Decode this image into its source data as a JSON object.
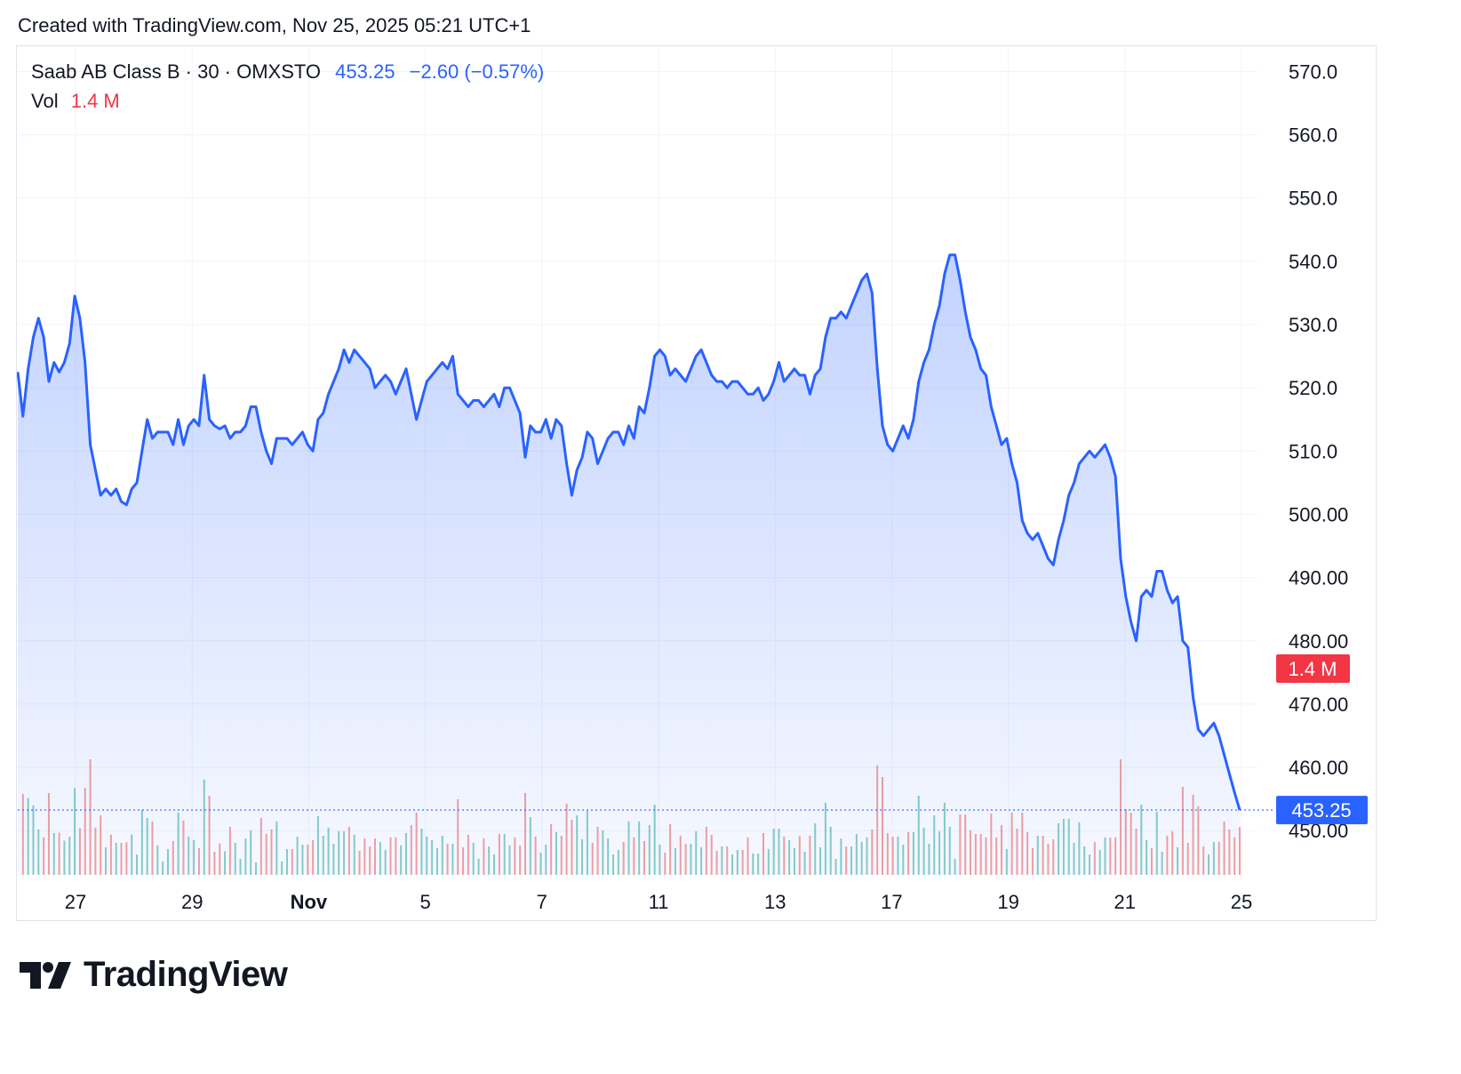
{
  "header": {
    "text": "Created with TradingView.com, Nov 25, 2025 05:21 UTC+1"
  },
  "legend": {
    "symbol": "Saab AB Class B · 30 · OMXSTO",
    "price": "453.25",
    "change": "−2.60 (−0.57%)",
    "volume_label": "Vol",
    "volume_value": "1.4 M"
  },
  "badges": {
    "price": "453.25",
    "volume": "1.4 M"
  },
  "logo": {
    "text": "TradingView"
  },
  "colors": {
    "line": "#2962ff",
    "fill": "#2962ff",
    "vol_up": "#26a69a",
    "vol_down": "#ef5350",
    "badge_vol": "#f23645",
    "badge_price": "#2962ff"
  },
  "chart_data": {
    "type": "area",
    "title": "Saab AB Class B · 30 · OMXSTO",
    "ylim": [
      443,
      574
    ],
    "y_ticks": [
      "570.0",
      "560.0",
      "550.0",
      "540.0",
      "530.0",
      "520.0",
      "510.0",
      "500.00",
      "490.00",
      "480.00",
      "470.00",
      "460.00",
      "450.00"
    ],
    "x_ticks": [
      "27",
      "29",
      "Nov",
      "5",
      "7",
      "11",
      "13",
      "17",
      "19",
      "21",
      "25"
    ],
    "grid": true,
    "last_price": 453.25,
    "x": [
      "Oct 24",
      "Oct 27",
      "Oct 28",
      "Oct 29",
      "Oct 30",
      "Oct 31",
      "Nov 3",
      "Nov 4",
      "Nov 5",
      "Nov 6",
      "Nov 7",
      "Nov 10",
      "Nov 11",
      "Nov 12",
      "Nov 13",
      "Nov 14",
      "Nov 17",
      "Nov 18",
      "Nov 19",
      "Nov 20",
      "Nov 21",
      "Nov 24",
      "Nov 25"
    ],
    "series": [
      {
        "values": [
          [
            522.5,
            515.5,
            523,
            528,
            531,
            528,
            521,
            524,
            522.5,
            524,
            527,
            534.5,
            531,
            524,
            511,
            507,
            503,
            504,
            503,
            504,
            502,
            501.5,
            504,
            505,
            510,
            515,
            512,
            513,
            513,
            513,
            511,
            515,
            511,
            514,
            515,
            514,
            522,
            515,
            514,
            513.5,
            514,
            512,
            513,
            513,
            514,
            517,
            517,
            513,
            510,
            508,
            512,
            512,
            512,
            511,
            512,
            513,
            511,
            510,
            515,
            516,
            519,
            521,
            523,
            526,
            524,
            526,
            525,
            524,
            523,
            520,
            521,
            522,
            521,
            519,
            521,
            523,
            519,
            515,
            518,
            521,
            522,
            523,
            524,
            523,
            525,
            519,
            518,
            517,
            518,
            518,
            517,
            518,
            519,
            517,
            520,
            520,
            518,
            516,
            509,
            514,
            513,
            513,
            515,
            512,
            515,
            514,
            508,
            503,
            507,
            509,
            513,
            512,
            508,
            510,
            512,
            513,
            513,
            511,
            514,
            512,
            517,
            516,
            520,
            525,
            526,
            525,
            522,
            523,
            522,
            521,
            523,
            525,
            526,
            524,
            522,
            521,
            521,
            520,
            521,
            521,
            520,
            519,
            519,
            520,
            518,
            519,
            521,
            524,
            521,
            522,
            523,
            522,
            522,
            519,
            522,
            523,
            528,
            531,
            531,
            532,
            531,
            533,
            535,
            537,
            538,
            535,
            523,
            514,
            511,
            510,
            512,
            514,
            512,
            515,
            521,
            524,
            526,
            530,
            533,
            538,
            541,
            541,
            537,
            532,
            528,
            526,
            523,
            522,
            517,
            514,
            511,
            512,
            508,
            505,
            499,
            497,
            496,
            497,
            495,
            493,
            492,
            496,
            499,
            503,
            505,
            508,
            509,
            510,
            509,
            510,
            511,
            509,
            506,
            493,
            487,
            483,
            480,
            487,
            488,
            487,
            491,
            491,
            488,
            486,
            487,
            480,
            479,
            471,
            466,
            465,
            466,
            467,
            465,
            462,
            459,
            456,
            453.25
          ],
          [
            522.5,
            515.5,
            523,
            528,
            531,
            528,
            521,
            524,
            522.5,
            524,
            527,
            534.5,
            531,
            524,
            511,
            507,
            503,
            504,
            503,
            504,
            502,
            501.5,
            504,
            505,
            510,
            515,
            512,
            513,
            513,
            513,
            511,
            515,
            511,
            514,
            515,
            514,
            522,
            515,
            514,
            513.5,
            514,
            512,
            513,
            513,
            514,
            517,
            517,
            513,
            510,
            508,
            512,
            512,
            512,
            511,
            512,
            513,
            511,
            510,
            515,
            516,
            519,
            521,
            523,
            526,
            524,
            526,
            525,
            524,
            523,
            520,
            521,
            522,
            521,
            519,
            521,
            523,
            519,
            515,
            518,
            521,
            522,
            523,
            524,
            523,
            525,
            519,
            518,
            517,
            518,
            518,
            517,
            518,
            519,
            517,
            520,
            520,
            518,
            516,
            509,
            514,
            513,
            513,
            515,
            512,
            515,
            514,
            508,
            503,
            507,
            509,
            513,
            512,
            508,
            510,
            512,
            513,
            513,
            511,
            514,
            512,
            517,
            516,
            520,
            525,
            526,
            525,
            522,
            523,
            522,
            521,
            523,
            525,
            526,
            524,
            522,
            521,
            521,
            520,
            521,
            521,
            520,
            519,
            519,
            520,
            518,
            519,
            521,
            524,
            521,
            522,
            523,
            522,
            522,
            519,
            522,
            523,
            528,
            531,
            531,
            532,
            531,
            533,
            535,
            537,
            538,
            535,
            523,
            514,
            511,
            510,
            512,
            514,
            512,
            515,
            521,
            524,
            526,
            530,
            533,
            538,
            541,
            541,
            537,
            532,
            528,
            526,
            523,
            522,
            517,
            514,
            511,
            512,
            508,
            505,
            499,
            497,
            496,
            497,
            495,
            493,
            492,
            496,
            499,
            503,
            505,
            508,
            509,
            510,
            509,
            510,
            511,
            509,
            506,
            493,
            487,
            483,
            480,
            487,
            488,
            487,
            491,
            491,
            488,
            486,
            487,
            480,
            479,
            471,
            466,
            465,
            466,
            467,
            465,
            462,
            459,
            456,
            453.25
          ]
        ]
      }
    ]
  }
}
